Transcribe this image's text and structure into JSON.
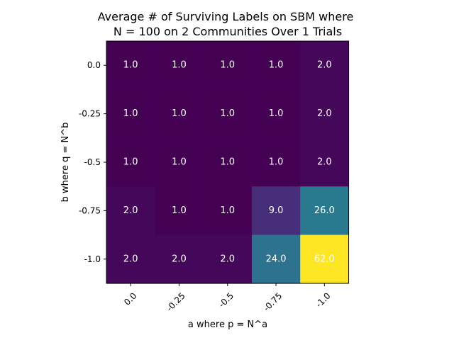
{
  "chart_data": {
    "type": "heatmap",
    "title_lines": [
      "Average # of Surviving Labels on SBM where",
      "N = 100 on 2 Communities Over 1 Trials"
    ],
    "xlabel": "a where p = N^a",
    "ylabel": "b where q = N^b",
    "x_tick_labels": [
      "0.0",
      "-0.25",
      "-0.5",
      "-0.75",
      "-1.0"
    ],
    "y_tick_labels": [
      "0.0",
      "-0.25",
      "-0.5",
      "-0.75",
      "-1.0"
    ],
    "values": [
      [
        1.0,
        1.0,
        1.0,
        1.0,
        2.0
      ],
      [
        1.0,
        1.0,
        1.0,
        1.0,
        2.0
      ],
      [
        1.0,
        1.0,
        1.0,
        1.0,
        2.0
      ],
      [
        2.0,
        1.0,
        1.0,
        9.0,
        26.0
      ],
      [
        2.0,
        2.0,
        2.0,
        24.0,
        62.0
      ]
    ],
    "cell_labels": [
      [
        "1.0",
        "1.0",
        "1.0",
        "1.0",
        "2.0"
      ],
      [
        "1.0",
        "1.0",
        "1.0",
        "1.0",
        "2.0"
      ],
      [
        "1.0",
        "1.0",
        "1.0",
        "1.0",
        "2.0"
      ],
      [
        "2.0",
        "1.0",
        "1.0",
        "9.0",
        "26.0"
      ],
      [
        "2.0",
        "2.0",
        "2.0",
        "24.0",
        "62.0"
      ]
    ],
    "colormap": "viridis",
    "color_range": [
      1.0,
      62.0
    ],
    "text_color": "#ffffff"
  }
}
